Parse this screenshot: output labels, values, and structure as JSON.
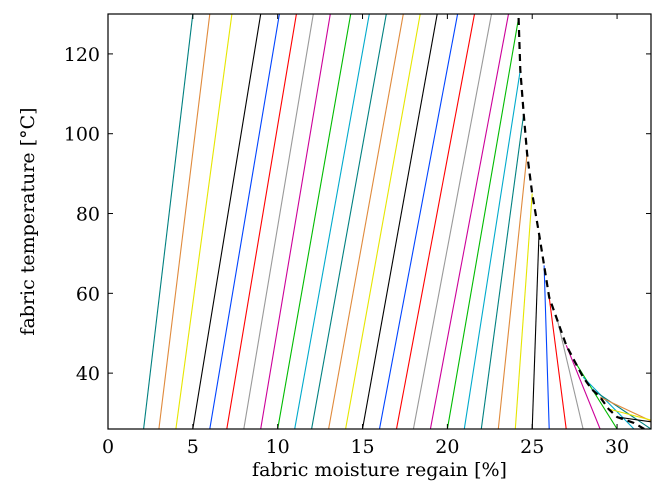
{
  "chart_data": {
    "type": "line",
    "xlabel": "fabric moisture regain [%]",
    "ylabel": "fabric temperature [°C]",
    "xlim": [
      0,
      32
    ],
    "ylim": [
      26,
      130
    ],
    "xticks": [
      0,
      5,
      10,
      15,
      20,
      25,
      30
    ],
    "yticks": [
      40,
      60,
      80,
      100,
      120
    ],
    "grid": false,
    "legend": "none",
    "line_colors": [
      "#008080",
      "#e08a3c",
      "#e6e600",
      "#000000",
      "#0044ff",
      "#ff0000",
      "#999999",
      "#cc0099",
      "#00bb00",
      "#00aacc"
    ],
    "series": [
      {
        "values": [
          [
            2.1,
            26
          ],
          [
            5.0,
            130
          ]
        ]
      },
      {
        "values": [
          [
            3.0,
            26
          ],
          [
            6.0,
            130
          ]
        ]
      },
      {
        "values": [
          [
            4.0,
            26
          ],
          [
            7.3,
            130
          ]
        ]
      },
      {
        "values": [
          [
            5.0,
            26
          ],
          [
            9.0,
            130
          ]
        ]
      },
      {
        "values": [
          [
            6.0,
            26
          ],
          [
            10.1,
            130
          ]
        ]
      },
      {
        "values": [
          [
            7.0,
            26
          ],
          [
            11.1,
            130
          ]
        ]
      },
      {
        "values": [
          [
            8.0,
            26
          ],
          [
            12.1,
            130
          ]
        ]
      },
      {
        "values": [
          [
            9.0,
            26
          ],
          [
            13.1,
            130
          ]
        ]
      },
      {
        "values": [
          [
            10.0,
            26
          ],
          [
            14.3,
            130
          ]
        ]
      },
      {
        "values": [
          [
            11.0,
            26
          ],
          [
            15.4,
            130
          ]
        ]
      },
      {
        "values": [
          [
            12.0,
            26
          ],
          [
            16.4,
            130
          ]
        ]
      },
      {
        "values": [
          [
            13.0,
            26
          ],
          [
            17.4,
            130
          ]
        ]
      },
      {
        "values": [
          [
            14.0,
            26
          ],
          [
            18.4,
            130
          ]
        ]
      },
      {
        "values": [
          [
            15.0,
            26
          ],
          [
            19.4,
            130
          ]
        ]
      },
      {
        "values": [
          [
            16.0,
            26
          ],
          [
            20.6,
            130
          ]
        ]
      },
      {
        "values": [
          [
            17.0,
            26
          ],
          [
            21.6,
            130
          ]
        ]
      },
      {
        "values": [
          [
            18.0,
            26
          ],
          [
            22.6,
            130
          ]
        ]
      },
      {
        "values": [
          [
            19.0,
            26
          ],
          [
            23.6,
            130
          ]
        ]
      },
      {
        "values": [
          [
            20.0,
            26
          ],
          [
            24.2,
            129
          ]
        ]
      },
      {
        "values": [
          [
            21.0,
            26
          ],
          [
            24.3,
            116
          ]
        ]
      },
      {
        "values": [
          [
            22.0,
            26
          ],
          [
            24.5,
            105
          ]
        ]
      },
      {
        "values": [
          [
            23.0,
            26
          ],
          [
            24.7,
            95
          ]
        ]
      },
      {
        "values": [
          [
            24.0,
            26
          ],
          [
            25.0,
            85
          ]
        ]
      },
      {
        "values": [
          [
            25.0,
            26
          ],
          [
            25.4,
            75
          ]
        ]
      },
      {
        "values": [
          [
            26.0,
            26
          ],
          [
            25.7,
            67
          ]
        ]
      },
      {
        "values": [
          [
            27.0,
            26
          ],
          [
            26.0,
            59
          ]
        ]
      },
      {
        "values": [
          [
            28.0,
            26
          ],
          [
            26.5,
            53
          ]
        ]
      },
      {
        "values": [
          [
            29.0,
            26
          ],
          [
            27.0,
            47
          ]
        ]
      },
      {
        "values": [
          [
            30.0,
            26
          ],
          [
            27.5,
            43
          ]
        ]
      },
      {
        "values": [
          [
            31.0,
            26
          ],
          [
            28.0,
            39
          ]
        ]
      },
      {
        "values": [
          [
            32.0,
            26
          ],
          [
            28.5,
            36
          ]
        ]
      },
      {
        "values": [
          [
            33.0,
            26
          ],
          [
            29.0,
            34
          ]
        ]
      },
      {
        "values": [
          [
            34.0,
            26
          ],
          [
            29.5,
            31
          ]
        ]
      },
      {
        "values": [
          [
            35.0,
            26
          ],
          [
            30.0,
            29
          ]
        ]
      }
    ],
    "boundary_line": {
      "style": "dashed",
      "color": "#000000",
      "values": [
        [
          24.2,
          129
        ],
        [
          24.3,
          116
        ],
        [
          24.5,
          105
        ],
        [
          24.7,
          95
        ],
        [
          25.0,
          85
        ],
        [
          25.4,
          75
        ],
        [
          25.7,
          67
        ],
        [
          26.0,
          59
        ],
        [
          26.5,
          53
        ],
        [
          27.0,
          47
        ],
        [
          27.5,
          43
        ],
        [
          28.0,
          39
        ],
        [
          28.5,
          36
        ],
        [
          29.0,
          34
        ],
        [
          29.5,
          31
        ],
        [
          30.0,
          29
        ],
        [
          31.0,
          27.5
        ],
        [
          31.6,
          26
        ]
      ]
    }
  }
}
